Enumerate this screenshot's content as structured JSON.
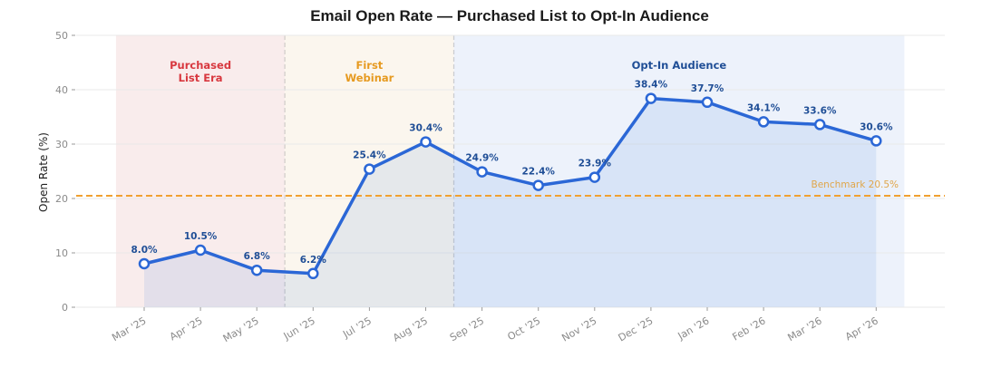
{
  "chart_data": {
    "type": "line",
    "title": "Email Open Rate — Purchased List to Opt-In Audience",
    "xlabel": "",
    "ylabel": "Open Rate (%)",
    "ylim": [
      0,
      50
    ],
    "yticks": [
      "0",
      "10",
      "20",
      "30",
      "40",
      "50"
    ],
    "grid": true,
    "categories": [
      "Mar '25",
      "Apr '25",
      "May '25",
      "Jun '25",
      "Jul '25",
      "Aug '25",
      "Sep '25",
      "Oct '25",
      "Nov '25",
      "Dec '25",
      "Jan '26",
      "Feb '26",
      "Mar '26",
      "Apr '26"
    ],
    "series": [
      {
        "values": [
          8.0,
          10.5,
          6.8,
          6.2,
          25.4,
          30.4,
          24.9,
          22.4,
          23.9,
          38.4,
          37.7,
          34.1,
          33.6,
          30.6
        ],
        "labels": [
          "8.0%",
          "10.5%",
          "6.8%",
          "6.2%",
          "25.4%",
          "30.4%",
          "24.9%",
          "22.4%",
          "23.9%",
          "38.4%",
          "37.7%",
          "34.1%",
          "33.6%",
          "30.6%"
        ],
        "color": "#2b67d6"
      }
    ],
    "regions": [
      {
        "label": [
          "Purchased",
          "List Era"
        ],
        "start": -0.5,
        "end": 2.5,
        "fill": "#f4dcdc",
        "text_color": "#d8383f"
      },
      {
        "label": [
          "First",
          "Webinar"
        ],
        "start": 2.5,
        "end": 5.5,
        "fill": "#f7efe0",
        "text_color": "#e69a20"
      },
      {
        "label": [
          "Opt-In Audience"
        ],
        "start": 5.5,
        "end": 13.5,
        "fill": "#dfe7f8",
        "text_color": "#1f4e96"
      }
    ],
    "benchmark": {
      "value": 20.5,
      "label": "Benchmark 20.5%",
      "color": "#f0a030"
    }
  }
}
